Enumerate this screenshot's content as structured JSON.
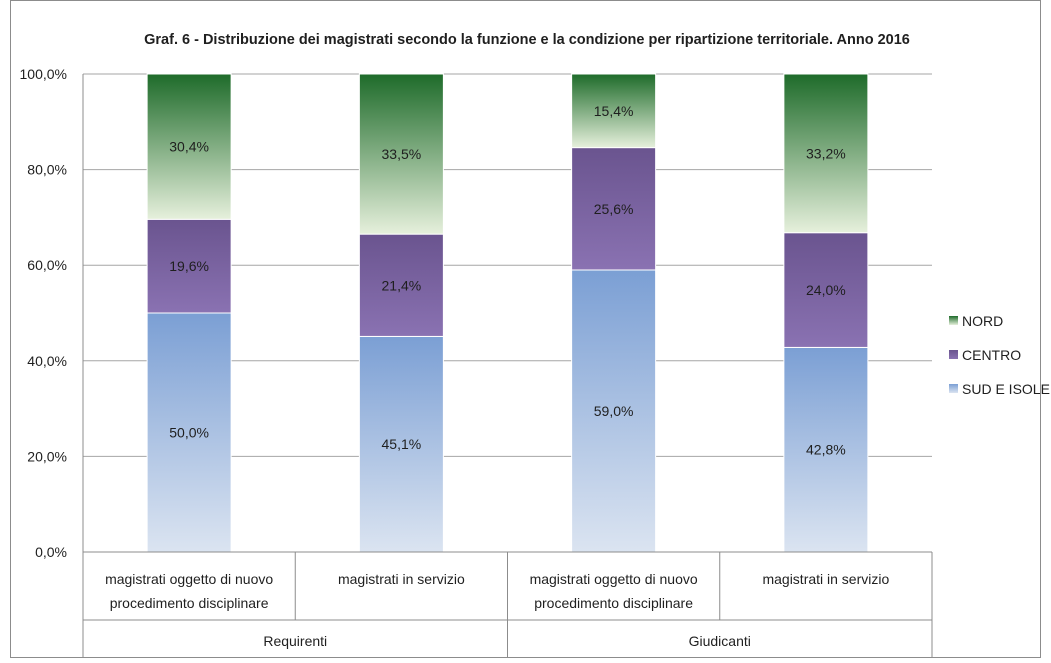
{
  "chart_data": {
    "type": "bar",
    "stacked": true,
    "percent": true,
    "title": "Graf. 6 - Distribuzione dei magistrati secondo la funzione e la condizione per ripartizione territoriale.  Anno 2016",
    "categories": [
      {
        "line1": "magistrati oggetto di nuovo",
        "line2": "procedimento disciplinare"
      },
      {
        "line1": "magistrati in servizio",
        "line2": ""
      },
      {
        "line1": "magistrati oggetto di nuovo",
        "line2": "procedimento disciplinare"
      },
      {
        "line1": "magistrati in servizio",
        "line2": ""
      }
    ],
    "groups": [
      {
        "label": "Requirenti",
        "span": [
          0,
          1
        ]
      },
      {
        "label": "Giudicanti",
        "span": [
          2,
          3
        ]
      }
    ],
    "series": [
      {
        "name": "SUD E ISOLE",
        "values": [
          50.0,
          45.1,
          59.0,
          42.8
        ],
        "labels": [
          "50,0%",
          "45,1%",
          "59,0%",
          "42,8%"
        ],
        "color_top": "#7b9fd4",
        "color_bottom": "#dbe4f1"
      },
      {
        "name": "CENTRO",
        "values": [
          19.6,
          21.4,
          25.6,
          24.0
        ],
        "labels": [
          "19,6%",
          "21,4%",
          "25,6%",
          "24,0%"
        ],
        "color_top": "#6a548f",
        "color_bottom": "#8a72b2"
      },
      {
        "name": "NORD",
        "values": [
          30.4,
          33.5,
          15.4,
          33.2
        ],
        "labels": [
          "30,4%",
          "33,5%",
          "15,4%",
          "33,2%"
        ],
        "color_top": "#1e6b2a",
        "color_bottom": "#e6f0dc"
      }
    ],
    "ylim": [
      0,
      100
    ],
    "yticks": [
      0,
      20,
      40,
      60,
      80,
      100
    ],
    "ytick_labels": [
      "0,0%",
      "20,0%",
      "40,0%",
      "60,0%",
      "80,0%",
      "100,0%"
    ],
    "legend_order": [
      "NORD",
      "CENTRO",
      "SUD E ISOLE"
    ],
    "legend_position": "right",
    "grid": true,
    "gridline_color": "#a6a6a6",
    "axis_color": "#8c8c8c"
  }
}
